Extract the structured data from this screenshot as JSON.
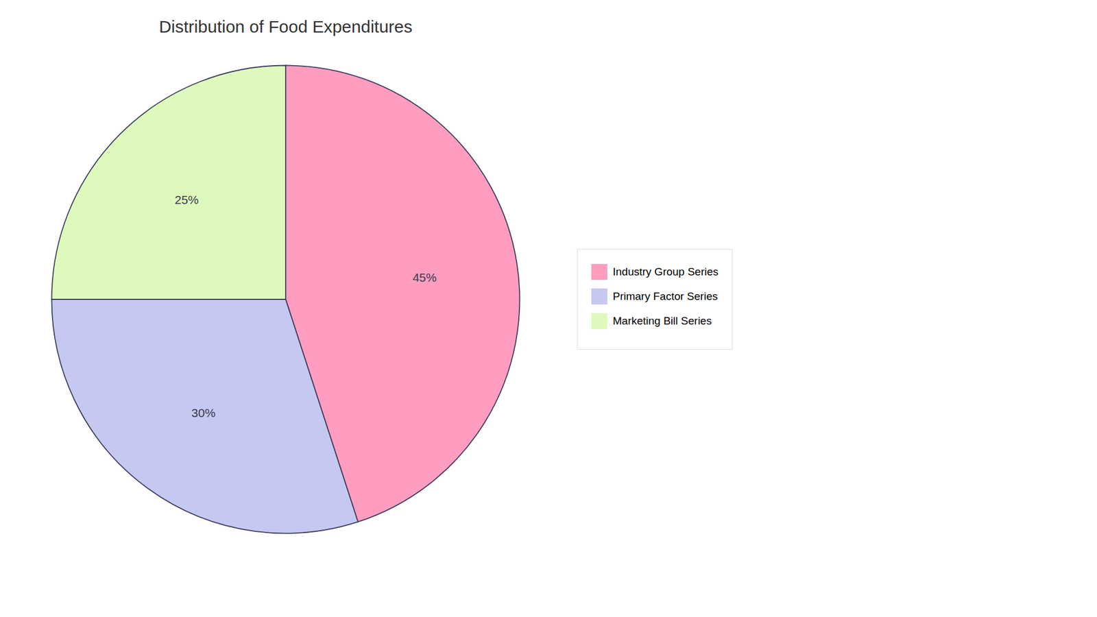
{
  "chart_data": {
    "type": "pie",
    "title": "Distribution of Food Expenditures",
    "categories": [
      "Industry Group Series",
      "Primary Factor Series",
      "Marketing Bill Series"
    ],
    "values": [
      45,
      30,
      25
    ],
    "value_labels": [
      "45%",
      "30%",
      "25%"
    ],
    "colors": [
      "#FF9DC0",
      "#C5C8F0",
      "#DDFABC"
    ],
    "data_labels": true,
    "legend": "right"
  }
}
